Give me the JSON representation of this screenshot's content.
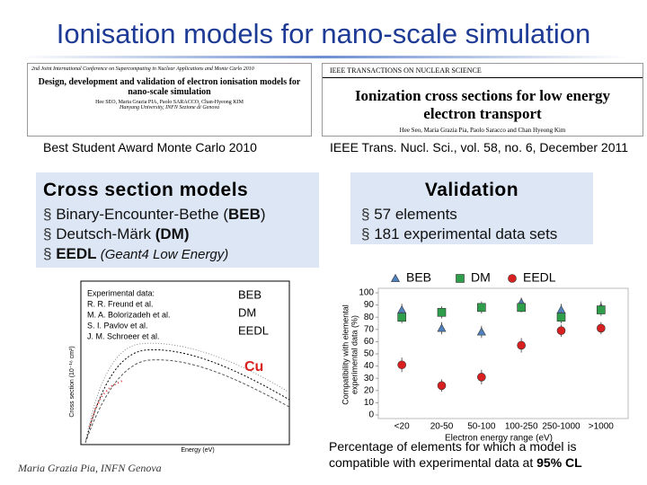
{
  "header": {
    "title": "Ionisation models for nano-scale simulation"
  },
  "papers": [
    {
      "journal": "2nd Joint International Conference on Supercomputing in Nuclear Applications and Monte Carlo 2010",
      "title": "Design, development and validation of electron ionisation models for nano-scale simulation",
      "authors": "Hee SEO, Maria Grazia PIA, Paolo SARACCO, Chan-Hyeong KIM",
      "affiliation": "Hanyang University, INFN Sezione di Genova",
      "caption": "Best Student Award Monte Carlo 2010"
    },
    {
      "journal": "IEEE TRANSACTIONS ON NUCLEAR SCIENCE",
      "title": "Ionization cross sections for low energy electron transport",
      "authors": "Hee Seo, Maria Grazia Pia, Paolo Saracco and Chan Hyeong Kim",
      "caption": "IEEE Trans. Nucl. Sci., vol. 58, no. 6, December 2011"
    }
  ],
  "models_box": {
    "heading": "Cross section models",
    "items": [
      [
        "Binary-Encounter-Bethe (",
        "BEB",
        ")"
      ],
      [
        "Deutsch-Märk ",
        "(DM)"
      ],
      [
        "EEDL",
        " (Geant4 Low Energy)"
      ]
    ]
  },
  "validation_box": {
    "heading": "Validation",
    "items": [
      "57 elements",
      "181 experimental data sets"
    ]
  },
  "cross_section_plot": {
    "legend_title": "Experimental data:",
    "references": [
      "R. R. Freund et al.",
      "M. A. Bolorizadeh et al.",
      "S. I. Pavlov et al.",
      "J. M. Schroeer et al."
    ],
    "models": [
      "BEB",
      "DM",
      "EEDL"
    ],
    "element": "Cu",
    "y_label": "Cross section (10⁻¹⁶ cm²)",
    "x_label": "Energy (eV)"
  },
  "chart_data": {
    "type": "scatter",
    "categories": [
      "<20",
      "20-50",
      "50-100",
      "100-250",
      "250-1000",
      ">1000"
    ],
    "series": [
      {
        "name": "BEB",
        "color": "#4f81bd",
        "marker": "triangle",
        "values": [
          86,
          71,
          68,
          92,
          86,
          88
        ],
        "errors": [
          5,
          5,
          5,
          4,
          5,
          5
        ]
      },
      {
        "name": "DM",
        "color": "#2e9e4a",
        "marker": "square",
        "values": [
          80,
          84,
          88,
          88,
          80,
          86
        ],
        "errors": [
          5,
          5,
          5,
          4,
          5,
          5
        ]
      },
      {
        "name": "EEDL",
        "color": "#d92020",
        "marker": "circle",
        "values": [
          41,
          24,
          31,
          57,
          69,
          71
        ],
        "errors": [
          6,
          5,
          6,
          6,
          5,
          5
        ]
      }
    ],
    "ylim": [
      0,
      100
    ],
    "yticks": [
      0,
      10,
      20,
      30,
      40,
      50,
      60,
      70,
      80,
      90,
      100
    ],
    "x_label": "Electron energy range (eV)",
    "y_label": [
      "Compatibility with elemental",
      "experimental data (%)"
    ],
    "legend": "top"
  },
  "conclusion": [
    "Percentage of elements for which a model is compatible with experimental data at ",
    "95% CL"
  ],
  "footer": "Maria Grazia Pia, INFN Genova"
}
